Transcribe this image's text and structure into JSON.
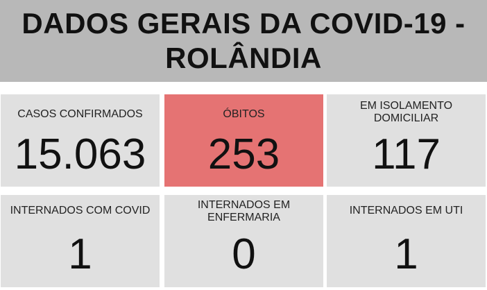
{
  "header": {
    "title": "DADOS GERAIS DA COVID-19 - ROLÂNDIA"
  },
  "colors": {
    "header_bg": "#b8b8b8",
    "card_bg": "#e0e0e0",
    "highlight": "#e57373"
  },
  "cards": [
    {
      "label": "CASOS CONFIRMADOS",
      "value": "15.063"
    },
    {
      "label": "ÓBITOS",
      "value": "253"
    },
    {
      "label": "EM ISOLAMENTO DOMICILIAR",
      "value": "117"
    },
    {
      "label": "INTERNADOS COM COVID",
      "value": "1"
    },
    {
      "label": "INTERNADOS EM ENFERMARIA",
      "value": "0"
    },
    {
      "label": "INTERNADOS EM UTI",
      "value": "1"
    }
  ]
}
